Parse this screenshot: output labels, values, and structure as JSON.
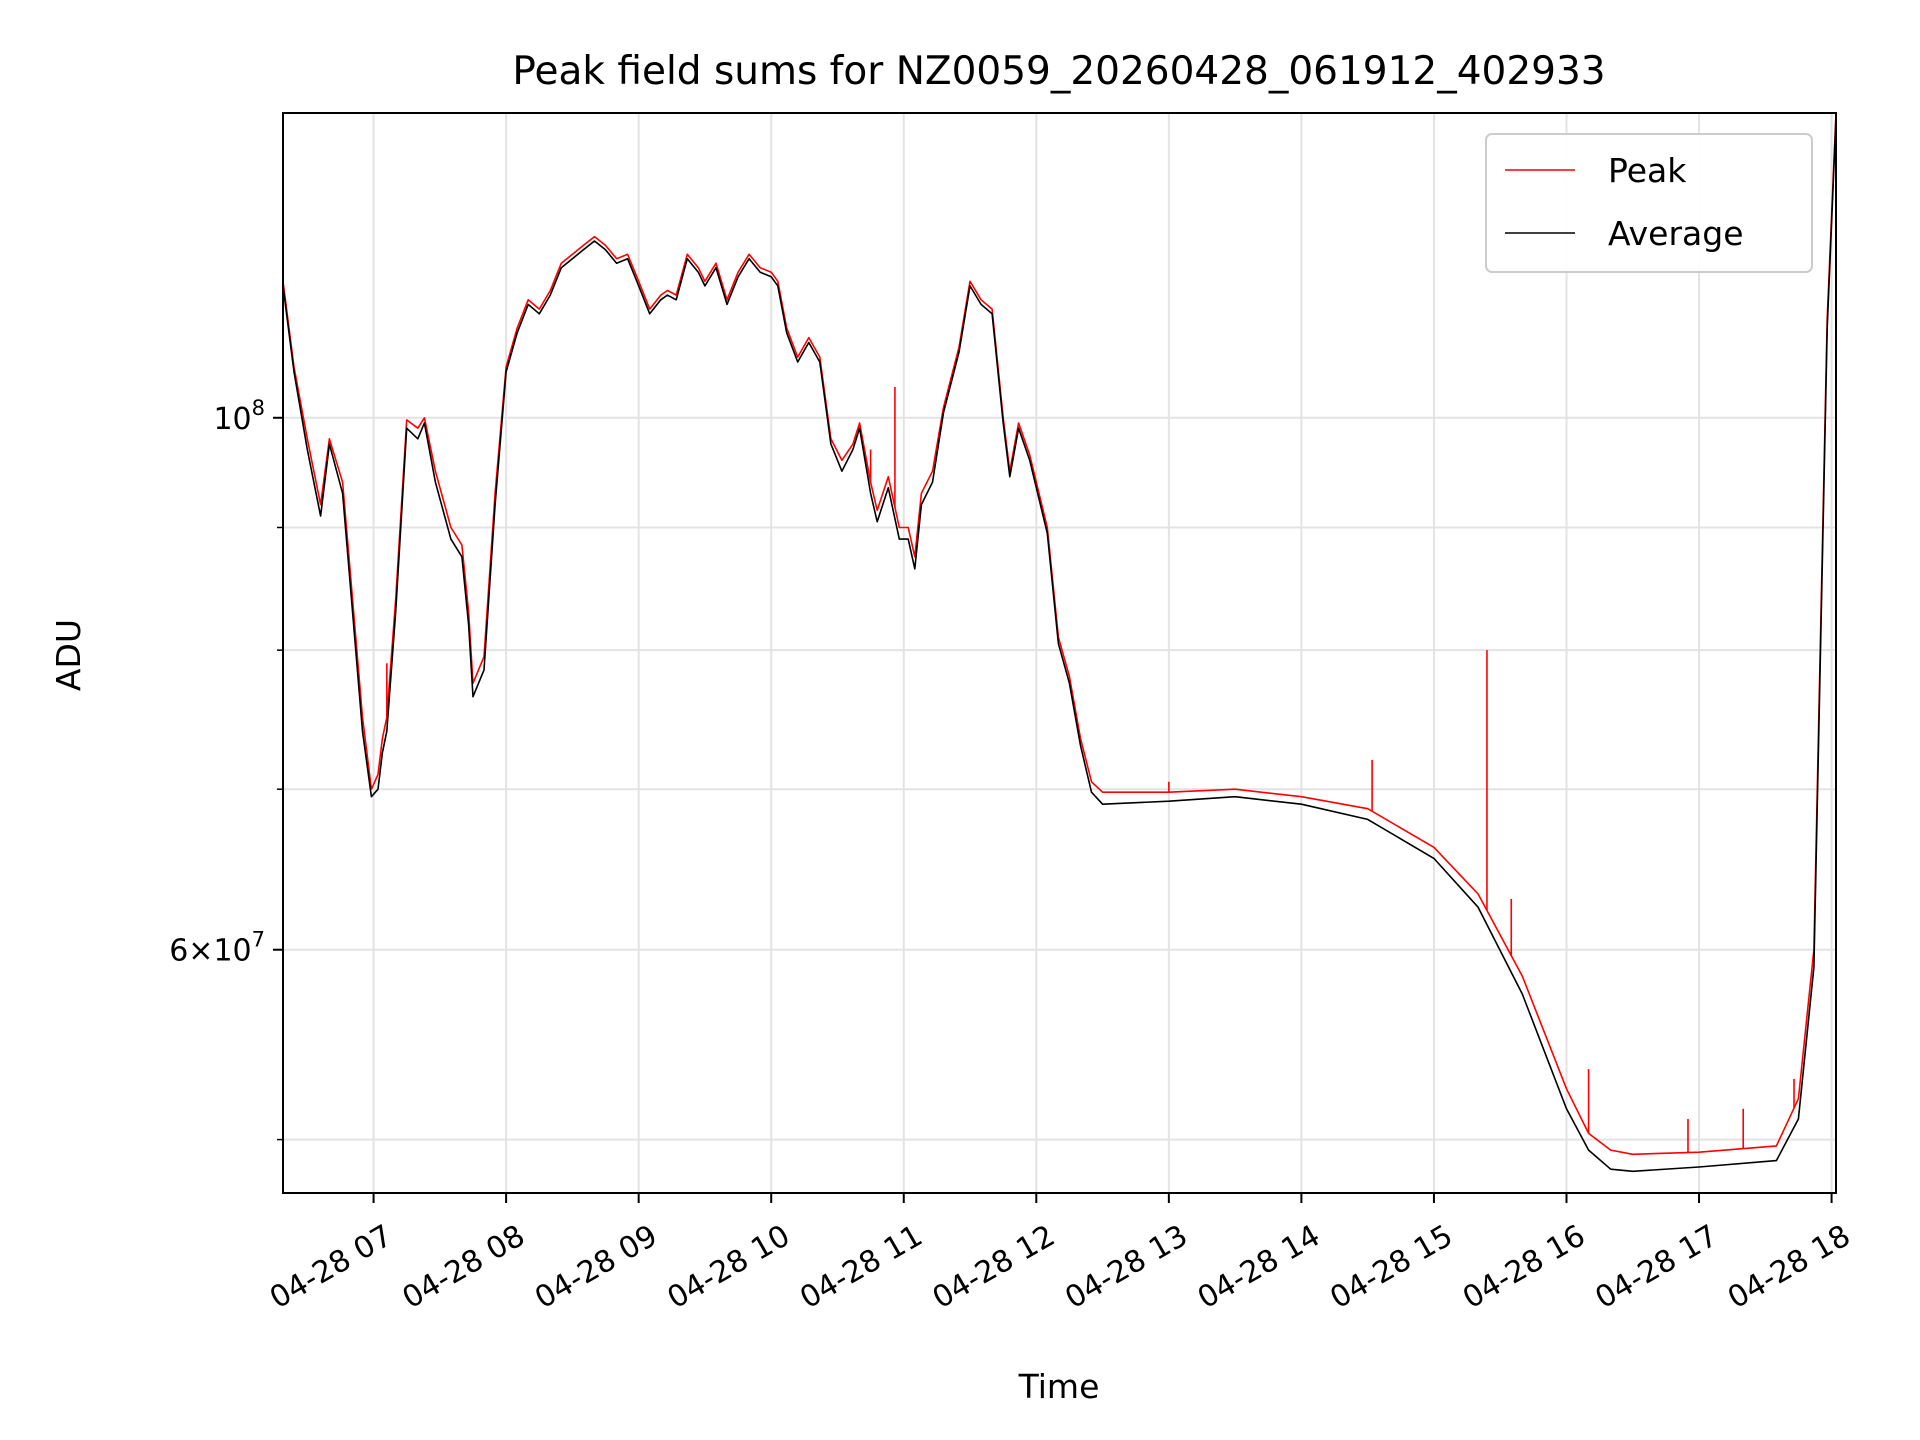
{
  "chart_data": {
    "type": "line",
    "title": "Peak field sums for NZ0059_20260428_061912_402933",
    "xlabel": "Time",
    "ylabel": "ADU",
    "x_scale": "time",
    "y_scale": "log",
    "grid": true,
    "legend_position": "upper right",
    "xlim": [
      "2026-04-28 06:19",
      "2026-04-28 18:02"
    ],
    "ylim": [
      47500000.0,
      134000000.0
    ],
    "x_ticks": [
      {
        "t": "2026-04-28 07:00",
        "label": "04-28 07"
      },
      {
        "t": "2026-04-28 08:00",
        "label": "04-28 08"
      },
      {
        "t": "2026-04-28 09:00",
        "label": "04-28 09"
      },
      {
        "t": "2026-04-28 10:00",
        "label": "04-28 10"
      },
      {
        "t": "2026-04-28 11:00",
        "label": "04-28 11"
      },
      {
        "t": "2026-04-28 12:00",
        "label": "04-28 12"
      },
      {
        "t": "2026-04-28 13:00",
        "label": "04-28 13"
      },
      {
        "t": "2026-04-28 14:00",
        "label": "04-28 14"
      },
      {
        "t": "2026-04-28 15:00",
        "label": "04-28 15"
      },
      {
        "t": "2026-04-28 16:00",
        "label": "04-28 16"
      },
      {
        "t": "2026-04-28 17:00",
        "label": "04-28 17"
      },
      {
        "t": "2026-04-28 18:00",
        "label": "04-28 18"
      }
    ],
    "y_major_ticks": [
      {
        "value": 100000000,
        "base": "10",
        "exp": "8"
      },
      {
        "value": 60000000,
        "base": "6×10",
        "exp": "7"
      }
    ],
    "y_minor_ticks": [
      50000000,
      70000000,
      80000000,
      90000000
    ],
    "series": [
      {
        "name": "Peak",
        "color": "#ff0000",
        "points": [
          [
            "2026-04-28 06:19",
            114000000.0
          ],
          [
            "2026-04-28 06:24",
            105000000.0
          ],
          [
            "2026-04-28 06:30",
            98000000.0
          ],
          [
            "2026-04-28 06:36",
            92000000.0
          ],
          [
            "2026-04-28 06:40",
            98000000.0
          ],
          [
            "2026-04-28 06:46",
            94000000.0
          ],
          [
            "2026-04-28 06:50",
            85000000.0
          ],
          [
            "2026-04-28 06:55",
            75000000.0
          ],
          [
            "2026-04-28 06:59",
            70000000.0
          ],
          [
            "2026-04-28 07:02",
            71000000.0
          ],
          [
            "2026-04-28 07:04",
            73500000.0
          ],
          [
            "2026-04-28 07:06",
            75000000.0
          ],
          [
            "2026-04-28 07:10",
            84000000.0
          ],
          [
            "2026-04-28 07:15",
            99800000.0
          ],
          [
            "2026-04-28 07:20",
            99000000.0
          ],
          [
            "2026-04-28 07:23",
            100000000.0
          ],
          [
            "2026-04-28 07:28",
            95000000.0
          ],
          [
            "2026-04-28 07:35",
            90000000.0
          ],
          [
            "2026-04-28 07:40",
            88500000.0
          ],
          [
            "2026-04-28 07:43",
            83000000.0
          ],
          [
            "2026-04-28 07:45",
            77500000.0
          ],
          [
            "2026-04-28 07:50",
            79500000.0
          ],
          [
            "2026-04-28 07:55",
            93000000.0
          ],
          [
            "2026-04-28 08:00",
            105000000.0
          ],
          [
            "2026-04-28 08:05",
            109000000.0
          ],
          [
            "2026-04-28 08:10",
            112000000.0
          ],
          [
            "2026-04-28 08:15",
            111000000.0
          ],
          [
            "2026-04-28 08:20",
            113000000.0
          ],
          [
            "2026-04-28 08:25",
            116000000.0
          ],
          [
            "2026-04-28 08:30",
            117000000.0
          ],
          [
            "2026-04-28 08:35",
            118000000.0
          ],
          [
            "2026-04-28 08:40",
            119000000.0
          ],
          [
            "2026-04-28 08:45",
            118000000.0
          ],
          [
            "2026-04-28 08:50",
            116500000.0
          ],
          [
            "2026-04-28 08:55",
            117000000.0
          ],
          [
            "2026-04-28 09:00",
            114000000.0
          ],
          [
            "2026-04-28 09:05",
            111000000.0
          ],
          [
            "2026-04-28 09:10",
            112500000.0
          ],
          [
            "2026-04-28 09:13",
            113000000.0
          ],
          [
            "2026-04-28 09:17",
            112500000.0
          ],
          [
            "2026-04-28 09:22",
            117000000.0
          ],
          [
            "2026-04-28 09:27",
            115500000.0
          ],
          [
            "2026-04-28 09:30",
            114000000.0
          ],
          [
            "2026-04-28 09:35",
            116000000.0
          ],
          [
            "2026-04-28 09:40",
            112000000.0
          ],
          [
            "2026-04-28 09:45",
            115000000.0
          ],
          [
            "2026-04-28 09:50",
            117000000.0
          ],
          [
            "2026-04-28 09:55",
            115500000.0
          ],
          [
            "2026-04-28 10:00",
            115000000.0
          ],
          [
            "2026-04-28 10:03",
            114000000.0
          ],
          [
            "2026-04-28 10:07",
            109000000.0
          ],
          [
            "2026-04-28 10:12",
            106000000.0
          ],
          [
            "2026-04-28 10:17",
            108000000.0
          ],
          [
            "2026-04-28 10:22",
            106000000.0
          ],
          [
            "2026-04-28 10:27",
            98000000.0
          ],
          [
            "2026-04-28 10:32",
            96000000.0
          ],
          [
            "2026-04-28 10:37",
            97500000.0
          ],
          [
            "2026-04-28 10:40",
            99500000.0
          ],
          [
            "2026-04-28 10:45",
            94000000.0
          ],
          [
            "2026-04-28 10:48",
            91500000.0
          ],
          [
            "2026-04-28 10:53",
            94500000.0
          ],
          [
            "2026-04-28 10:58",
            90000000.0
          ],
          [
            "2026-04-28 11:02",
            90000000.0
          ],
          [
            "2026-04-28 11:05",
            87500000.0
          ],
          [
            "2026-04-28 11:08",
            93000000.0
          ],
          [
            "2026-04-28 11:13",
            95000000.0
          ],
          [
            "2026-04-28 11:18",
            101000000.0
          ],
          [
            "2026-04-28 11:25",
            107000000.0
          ],
          [
            "2026-04-28 11:30",
            114000000.0
          ],
          [
            "2026-04-28 11:35",
            112000000.0
          ],
          [
            "2026-04-28 11:40",
            111000000.0
          ],
          [
            "2026-04-28 11:45",
            100000000.0
          ],
          [
            "2026-04-28 11:48",
            95000000.0
          ],
          [
            "2026-04-28 11:52",
            99500000.0
          ],
          [
            "2026-04-28 11:57",
            96500000.0
          ],
          [
            "2026-04-28 12:05",
            90000000.0
          ],
          [
            "2026-04-28 12:10",
            81000000.0
          ],
          [
            "2026-04-28 12:15",
            78000000.0
          ],
          [
            "2026-04-28 12:20",
            73500000.0
          ],
          [
            "2026-04-28 12:25",
            70500000.0
          ],
          [
            "2026-04-28 12:30",
            69800000.0
          ],
          [
            "2026-04-28 13:00",
            69800000.0
          ],
          [
            "2026-04-28 13:30",
            70000000.0
          ],
          [
            "2026-04-28 14:00",
            69500000.0
          ],
          [
            "2026-04-28 14:30",
            68700000.0
          ],
          [
            "2026-04-28 15:00",
            66200000.0
          ],
          [
            "2026-04-28 15:20",
            63300000.0
          ],
          [
            "2026-04-28 15:40",
            58500000.0
          ],
          [
            "2026-04-28 16:00",
            52500000.0
          ],
          [
            "2026-04-28 16:10",
            50300000.0
          ],
          [
            "2026-04-28 16:20",
            49500000.0
          ],
          [
            "2026-04-28 16:30",
            49300000.0
          ],
          [
            "2026-04-28 17:00",
            49400000.0
          ],
          [
            "2026-04-28 17:35",
            49700000.0
          ],
          [
            "2026-04-28 17:45",
            52000000.0
          ],
          [
            "2026-04-28 17:52",
            60000000.0
          ],
          [
            "2026-04-28 17:58",
            110000000.0
          ],
          [
            "2026-04-28 18:02",
            134000000.0
          ]
        ]
      },
      {
        "name": "Average",
        "color": "#000000",
        "points": [
          [
            "2026-04-28 06:19",
            113500000.0
          ],
          [
            "2026-04-28 06:24",
            104500000.0
          ],
          [
            "2026-04-28 06:30",
            97000000.0
          ],
          [
            "2026-04-28 06:36",
            91000000.0
          ],
          [
            "2026-04-28 06:40",
            97500000.0
          ],
          [
            "2026-04-28 06:46",
            93000000.0
          ],
          [
            "2026-04-28 06:50",
            84000000.0
          ],
          [
            "2026-04-28 06:55",
            74000000.0
          ],
          [
            "2026-04-28 06:59",
            69500000.0
          ],
          [
            "2026-04-28 07:02",
            70000000.0
          ],
          [
            "2026-04-28 07:04",
            72500000.0
          ],
          [
            "2026-04-28 07:06",
            74000000.0
          ],
          [
            "2026-04-28 07:10",
            83000000.0
          ],
          [
            "2026-04-28 07:15",
            99000000.0
          ],
          [
            "2026-04-28 07:20",
            98000000.0
          ],
          [
            "2026-04-28 07:23",
            99500000.0
          ],
          [
            "2026-04-28 07:28",
            94000000.0
          ],
          [
            "2026-04-28 07:35",
            89000000.0
          ],
          [
            "2026-04-28 07:40",
            87500000.0
          ],
          [
            "2026-04-28 07:43",
            82000000.0
          ],
          [
            "2026-04-28 07:45",
            76500000.0
          ],
          [
            "2026-04-28 07:50",
            78500000.0
          ],
          [
            "2026-04-28 07:55",
            92000000.0
          ],
          [
            "2026-04-28 08:00",
            104500000.0
          ],
          [
            "2026-04-28 08:05",
            108500000.0
          ],
          [
            "2026-04-28 08:10",
            111500000.0
          ],
          [
            "2026-04-28 08:15",
            110500000.0
          ],
          [
            "2026-04-28 08:20",
            112500000.0
          ],
          [
            "2026-04-28 08:25",
            115500000.0
          ],
          [
            "2026-04-28 08:30",
            116500000.0
          ],
          [
            "2026-04-28 08:35",
            117500000.0
          ],
          [
            "2026-04-28 08:40",
            118500000.0
          ],
          [
            "2026-04-28 08:45",
            117500000.0
          ],
          [
            "2026-04-28 08:50",
            116000000.0
          ],
          [
            "2026-04-28 08:55",
            116500000.0
          ],
          [
            "2026-04-28 09:00",
            113500000.0
          ],
          [
            "2026-04-28 09:05",
            110500000.0
          ],
          [
            "2026-04-28 09:10",
            112000000.0
          ],
          [
            "2026-04-28 09:13",
            112500000.0
          ],
          [
            "2026-04-28 09:17",
            112000000.0
          ],
          [
            "2026-04-28 09:22",
            116500000.0
          ],
          [
            "2026-04-28 09:27",
            115000000.0
          ],
          [
            "2026-04-28 09:30",
            113500000.0
          ],
          [
            "2026-04-28 09:35",
            115500000.0
          ],
          [
            "2026-04-28 09:40",
            111500000.0
          ],
          [
            "2026-04-28 09:45",
            114500000.0
          ],
          [
            "2026-04-28 09:50",
            116500000.0
          ],
          [
            "2026-04-28 09:55",
            115000000.0
          ],
          [
            "2026-04-28 10:00",
            114500000.0
          ],
          [
            "2026-04-28 10:03",
            113500000.0
          ],
          [
            "2026-04-28 10:07",
            108500000.0
          ],
          [
            "2026-04-28 10:12",
            105500000.0
          ],
          [
            "2026-04-28 10:17",
            107500000.0
          ],
          [
            "2026-04-28 10:22",
            105500000.0
          ],
          [
            "2026-04-28 10:27",
            97500000.0
          ],
          [
            "2026-04-28 10:32",
            95000000.0
          ],
          [
            "2026-04-28 10:37",
            97000000.0
          ],
          [
            "2026-04-28 10:40",
            99000000.0
          ],
          [
            "2026-04-28 10:45",
            93000000.0
          ],
          [
            "2026-04-28 10:48",
            90500000.0
          ],
          [
            "2026-04-28 10:53",
            93500000.0
          ],
          [
            "2026-04-28 10:58",
            89000000.0
          ],
          [
            "2026-04-28 11:02",
            89000000.0
          ],
          [
            "2026-04-28 11:05",
            86500000.0
          ],
          [
            "2026-04-28 11:08",
            92000000.0
          ],
          [
            "2026-04-28 11:13",
            94000000.0
          ],
          [
            "2026-04-28 11:18",
            100500000.0
          ],
          [
            "2026-04-28 11:25",
            106500000.0
          ],
          [
            "2026-04-28 11:30",
            113500000.0
          ],
          [
            "2026-04-28 11:35",
            111500000.0
          ],
          [
            "2026-04-28 11:40",
            110500000.0
          ],
          [
            "2026-04-28 11:45",
            99500000.0
          ],
          [
            "2026-04-28 11:48",
            94500000.0
          ],
          [
            "2026-04-28 11:52",
            99000000.0
          ],
          [
            "2026-04-28 11:57",
            96000000.0
          ],
          [
            "2026-04-28 12:05",
            89500000.0
          ],
          [
            "2026-04-28 12:10",
            80500000.0
          ],
          [
            "2026-04-28 12:15",
            77500000.0
          ],
          [
            "2026-04-28 12:20",
            73000000.0
          ],
          [
            "2026-04-28 12:25",
            69800000.0
          ],
          [
            "2026-04-28 12:30",
            69000000.0
          ],
          [
            "2026-04-28 13:00",
            69200000.0
          ],
          [
            "2026-04-28 13:30",
            69500000.0
          ],
          [
            "2026-04-28 14:00",
            69000000.0
          ],
          [
            "2026-04-28 14:30",
            68000000.0
          ],
          [
            "2026-04-28 15:00",
            65500000.0
          ],
          [
            "2026-04-28 15:20",
            62500000.0
          ],
          [
            "2026-04-28 15:40",
            57500000.0
          ],
          [
            "2026-04-28 16:00",
            51500000.0
          ],
          [
            "2026-04-28 16:10",
            49500000.0
          ],
          [
            "2026-04-28 16:20",
            48600000.0
          ],
          [
            "2026-04-28 16:30",
            48500000.0
          ],
          [
            "2026-04-28 17:00",
            48700000.0
          ],
          [
            "2026-04-28 17:35",
            49000000.0
          ],
          [
            "2026-04-28 17:45",
            51000000.0
          ],
          [
            "2026-04-28 17:52",
            59000000.0
          ],
          [
            "2026-04-28 17:58",
            109000000.0
          ],
          [
            "2026-04-28 18:02",
            133500000.0
          ]
        ]
      }
    ],
    "peak_spikes": [
      [
        "2026-04-28 07:06",
        79000000.0
      ],
      [
        "2026-04-28 10:45",
        97000000.0
      ],
      [
        "2026-04-28 10:56",
        103000000.0
      ],
      [
        "2026-04-28 13:00",
        70500000.0
      ],
      [
        "2026-04-28 14:32",
        72000000.0
      ],
      [
        "2026-04-28 15:24",
        80000000.0
      ],
      [
        "2026-04-28 15:35",
        63000000.0
      ],
      [
        "2026-04-28 16:10",
        53500000.0
      ],
      [
        "2026-04-28 16:55",
        51000000.0
      ],
      [
        "2026-04-28 17:20",
        51500000.0
      ],
      [
        "2026-04-28 17:43",
        53000000.0
      ]
    ]
  }
}
